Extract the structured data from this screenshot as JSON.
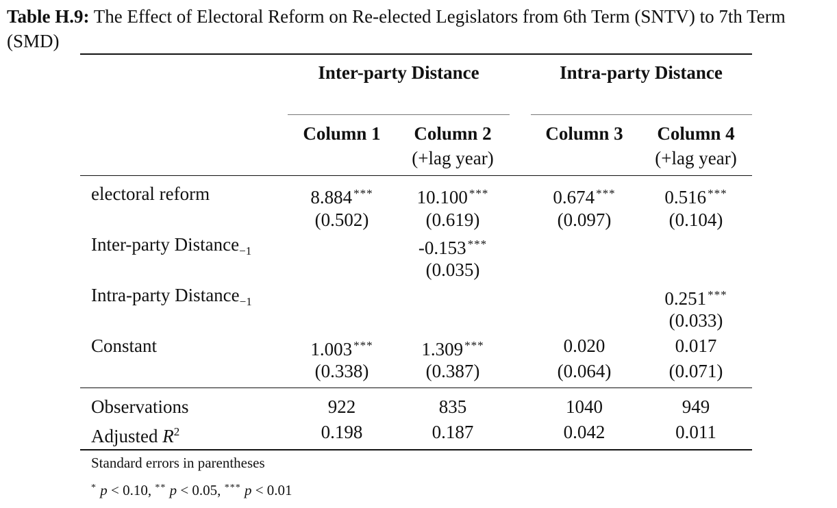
{
  "caption": {
    "label": "Table H.9:",
    "text": "The Effect of Electoral Reform on Re-elected Legislators from 6th Term (SNTV) to 7th Term (SMD)"
  },
  "groups": [
    "Inter-party Distance",
    "Intra-party Distance"
  ],
  "columns": [
    {
      "name": "Column 1",
      "sub": ""
    },
    {
      "name": "Column 2",
      "sub": "(+lag year)"
    },
    {
      "name": "Column 3",
      "sub": ""
    },
    {
      "name": "Column 4",
      "sub": "(+lag year)"
    }
  ],
  "rows": [
    {
      "label": "electoral reform",
      "sub": "",
      "coef": [
        "8.884",
        "10.100",
        "0.674",
        "0.516"
      ],
      "stars": [
        "***",
        "***",
        "***",
        "***"
      ],
      "se": [
        "(0.502)",
        "(0.619)",
        "(0.097)",
        "(0.104)"
      ]
    },
    {
      "label": "Inter-party Distance",
      "sub": "−1",
      "coef": [
        "",
        "-0.153",
        "",
        ""
      ],
      "stars": [
        "",
        "***",
        "",
        ""
      ],
      "se": [
        "",
        "(0.035)",
        "",
        ""
      ]
    },
    {
      "label": "Intra-party Distance",
      "sub": "−1",
      "coef": [
        "",
        "",
        "",
        "0.251"
      ],
      "stars": [
        "",
        "",
        "",
        "***"
      ],
      "se": [
        "",
        "",
        "",
        "(0.033)"
      ]
    },
    {
      "label": "Constant",
      "sub": "",
      "coef": [
        "1.003",
        "1.309",
        "0.020",
        "0.017"
      ],
      "stars": [
        "***",
        "***",
        "",
        ""
      ],
      "se": [
        "(0.338)",
        "(0.387)",
        "(0.064)",
        "(0.071)"
      ]
    }
  ],
  "stats": [
    {
      "label": "Observations",
      "sup": "",
      "values": [
        "922",
        "835",
        "1040",
        "949"
      ]
    },
    {
      "label": "Adjusted R",
      "sup": "2",
      "values": [
        "0.198",
        "0.187",
        "0.042",
        "0.011"
      ]
    }
  ],
  "notes": {
    "se": "Standard errors in parentheses",
    "sig": [
      {
        "stars": "*",
        "text": "p < 0.10,"
      },
      {
        "stars": "**",
        "text": "p < 0.05,"
      },
      {
        "stars": "***",
        "text": "p < 0.01"
      }
    ]
  }
}
